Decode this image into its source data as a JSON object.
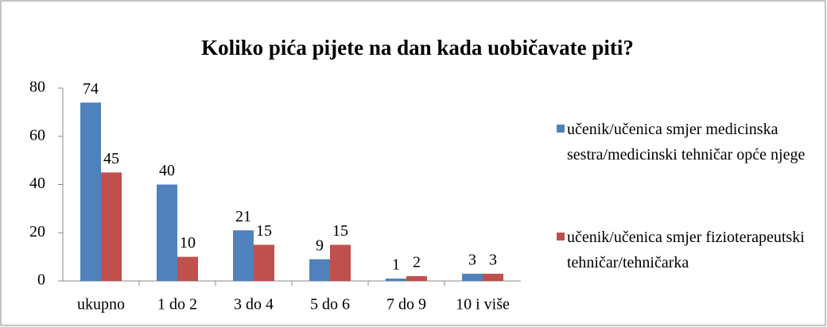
{
  "chart_data": {
    "type": "bar",
    "title": "Koliko pića pijete na dan kada  uobičavate piti?",
    "categories": [
      "ukupno",
      "1 do 2",
      "3 do 4",
      "5 do 6",
      "7 do 9",
      "10 i više"
    ],
    "series": [
      {
        "name": "učenik/učenica smjer medicinska sestra/medicinski tehničar opće njege",
        "color": "#4f81bd",
        "values": [
          74,
          40,
          21,
          9,
          1,
          3
        ]
      },
      {
        "name": "učenik/učenica smjer fizioterapeutski tehničar/tehničarka",
        "color": "#c0504d",
        "values": [
          45,
          10,
          15,
          15,
          2,
          3
        ]
      }
    ],
    "ylim": [
      0,
      80
    ],
    "yticks": [
      0,
      20,
      40,
      60,
      80
    ],
    "grid": false,
    "legend": "right"
  }
}
